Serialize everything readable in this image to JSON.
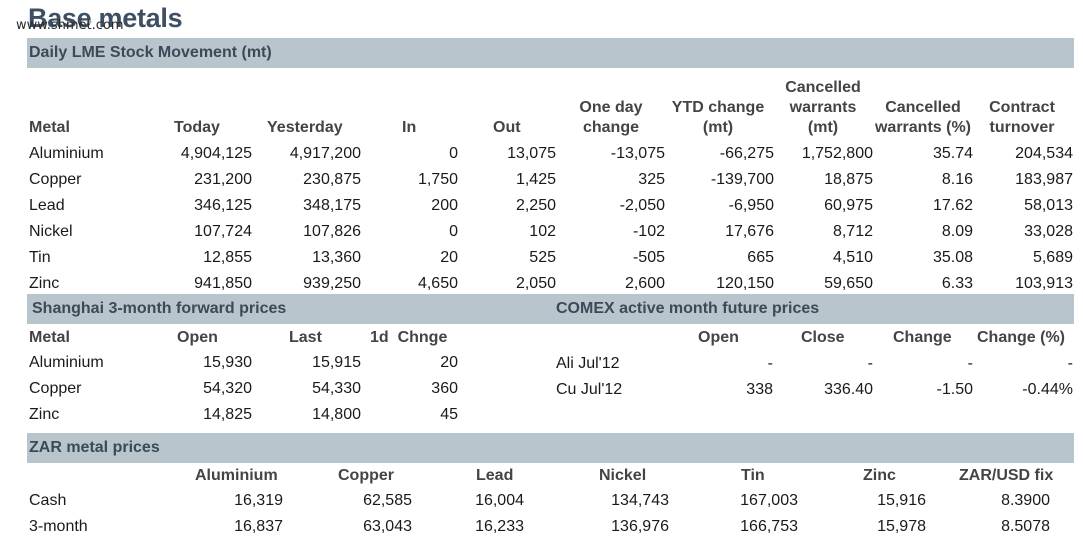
{
  "title": "Base metals",
  "watermark": "www.shmet.com",
  "lme": {
    "section_title": "Daily LME Stock Movement (mt)",
    "headers": [
      "Metal",
      "Today",
      "Yesterday",
      "In",
      "Out",
      "One day\nchange",
      "YTD change\n(mt)",
      "Cancelled\nwarrants\n(mt)",
      "Cancelled\nwarrants (%)",
      "Contract\nturnover"
    ],
    "rows": [
      [
        "Aluminium",
        "4,904,125",
        "4,917,200",
        "0",
        "13,075",
        "-13,075",
        "-66,275",
        "1,752,800",
        "35.74",
        "204,534"
      ],
      [
        "Copper",
        "231,200",
        "230,875",
        "1,750",
        "1,425",
        "325",
        "-139,700",
        "18,875",
        "8.16",
        "183,987"
      ],
      [
        "Lead",
        "346,125",
        "348,175",
        "200",
        "2,250",
        "-2,050",
        "-6,950",
        "60,975",
        "17.62",
        "58,013"
      ],
      [
        "Nickel",
        "107,724",
        "107,826",
        "0",
        "102",
        "-102",
        "17,676",
        "8,712",
        "8.09",
        "33,028"
      ],
      [
        "Tin",
        "12,855",
        "13,360",
        "20",
        "525",
        "-505",
        "665",
        "4,510",
        "35.08",
        "5,689"
      ],
      [
        "Zinc",
        "941,850",
        "939,250",
        "4,650",
        "2,050",
        "2,600",
        "120,150",
        "59,650",
        "6.33",
        "103,913"
      ]
    ]
  },
  "shanghai": {
    "section_title": "Shanghai 3-month forward prices",
    "headers": [
      "Metal",
      "Open",
      "Last",
      "1d  Chnge"
    ],
    "rows": [
      [
        "Aluminium",
        "15,930",
        "15,915",
        "20"
      ],
      [
        "Copper",
        "54,320",
        "54,330",
        "360"
      ],
      [
        "Zinc",
        "14,825",
        "14,800",
        "45"
      ]
    ]
  },
  "comex": {
    "section_title": "COMEX active month future prices",
    "headers": [
      "Open",
      "Close",
      "Change",
      "Change (%)"
    ],
    "rows": [
      [
        "Ali Jul'12",
        "-",
        "-",
        "-",
        "-"
      ],
      [
        "Cu Jul'12",
        "338",
        "336.40",
        "-1.50",
        "-0.44%"
      ]
    ]
  },
  "zar": {
    "section_title": "ZAR metal prices",
    "headers": [
      "Aluminium",
      "Copper",
      "Lead",
      "Nickel",
      "Tin",
      "Zinc",
      "ZAR/USD fix"
    ],
    "rows": [
      [
        "Cash",
        "16,319",
        "62,585",
        "16,004",
        "134,743",
        "167,003",
        "15,916",
        "8.3900"
      ],
      [
        "3-month",
        "16,837",
        "63,043",
        "16,233",
        "136,976",
        "166,753",
        "15,978",
        "8.5078"
      ]
    ]
  }
}
